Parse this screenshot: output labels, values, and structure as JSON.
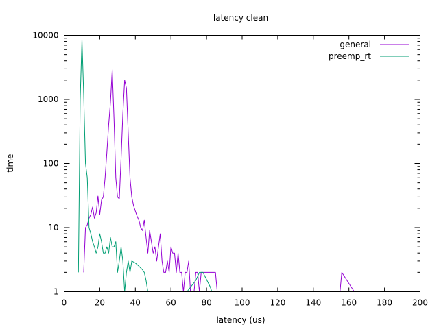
{
  "chart_data": {
    "type": "line",
    "title": "latency clean",
    "xlabel": "latency (us)",
    "ylabel": "time",
    "xlim": [
      0,
      200
    ],
    "ylim": [
      1,
      10000
    ],
    "yscale": "log",
    "grid": false,
    "legend_position": "top-right",
    "x_ticks": [
      "0",
      "20",
      "40",
      "60",
      "80",
      "100",
      "120",
      "140",
      "160",
      "180",
      "200"
    ],
    "y_ticks": [
      "1",
      "10",
      "100",
      "1000",
      "10000"
    ],
    "series": [
      {
        "name": "general",
        "color": "#9400d3",
        "points": [
          [
            11,
            2
          ],
          [
            12,
            10
          ],
          [
            13,
            11
          ],
          [
            14,
            14
          ],
          [
            15,
            16
          ],
          [
            16,
            21
          ],
          [
            17,
            14
          ],
          [
            18,
            17
          ],
          [
            19,
            31
          ],
          [
            20,
            16
          ],
          [
            21,
            27
          ],
          [
            22,
            30
          ],
          [
            23,
            60
          ],
          [
            24,
            150
          ],
          [
            25,
            400
          ],
          [
            26,
            900
          ],
          [
            27,
            2900
          ],
          [
            28,
            500
          ],
          [
            29,
            60
          ],
          [
            30,
            30
          ],
          [
            31,
            28
          ],
          [
            32,
            120
          ],
          [
            33,
            600
          ],
          [
            34,
            2000
          ],
          [
            35,
            1500
          ],
          [
            36,
            300
          ],
          [
            37,
            60
          ],
          [
            38,
            30
          ],
          [
            39,
            22
          ],
          [
            40,
            18
          ],
          [
            41,
            15
          ],
          [
            42,
            13
          ],
          [
            43,
            10
          ],
          [
            44,
            9
          ],
          [
            45,
            13
          ],
          [
            46,
            7
          ],
          [
            47,
            4
          ],
          [
            48,
            9
          ],
          [
            49,
            6
          ],
          [
            50,
            4
          ],
          [
            51,
            5
          ],
          [
            52,
            3
          ],
          [
            53,
            5
          ],
          [
            54,
            8
          ],
          [
            55,
            3
          ],
          [
            56,
            2
          ],
          [
            57,
            2
          ],
          [
            58,
            3
          ],
          [
            59,
            2
          ],
          [
            60,
            5
          ],
          [
            61,
            4
          ],
          [
            62,
            4
          ],
          [
            63,
            2
          ],
          [
            64,
            4
          ],
          [
            65,
            2
          ],
          [
            66,
            2
          ],
          [
            67,
            1
          ],
          [
            68,
            2
          ],
          [
            69,
            2
          ],
          [
            70,
            3
          ],
          [
            71,
            1
          ],
          [
            72,
            1
          ],
          [
            73,
            1
          ],
          [
            74,
            2
          ],
          [
            75,
            2
          ],
          [
            76,
            1
          ],
          [
            77,
            2
          ],
          [
            78,
            2
          ],
          [
            80,
            2
          ],
          [
            85,
            2
          ],
          [
            86,
            1
          ],
          [
            155,
            1
          ],
          [
            156,
            2
          ],
          [
            163,
            1
          ]
        ]
      },
      {
        "name": "preemp_rt",
        "color": "#009e73",
        "points": [
          [
            8,
            2
          ],
          [
            9,
            1000
          ],
          [
            10,
            8600
          ],
          [
            11,
            1200
          ],
          [
            12,
            100
          ],
          [
            13,
            60
          ],
          [
            14,
            10
          ],
          [
            15,
            8
          ],
          [
            16,
            6
          ],
          [
            17,
            5
          ],
          [
            18,
            4
          ],
          [
            19,
            5
          ],
          [
            20,
            8
          ],
          [
            21,
            6
          ],
          [
            22,
            4
          ],
          [
            23,
            4
          ],
          [
            24,
            5
          ],
          [
            25,
            4
          ],
          [
            26,
            7
          ],
          [
            27,
            5
          ],
          [
            28,
            5
          ],
          [
            29,
            6
          ],
          [
            30,
            2
          ],
          [
            31,
            3
          ],
          [
            32,
            5
          ],
          [
            33,
            3
          ],
          [
            34,
            1
          ],
          [
            35,
            2
          ],
          [
            36,
            3
          ],
          [
            37,
            2
          ],
          [
            38,
            3
          ],
          [
            40,
            2.8
          ],
          [
            42,
            2.5
          ],
          [
            44,
            2.2
          ],
          [
            45,
            2
          ],
          [
            46,
            1.5
          ],
          [
            47,
            1
          ],
          [
            69,
            1
          ],
          [
            74,
            1.5
          ],
          [
            76,
            2
          ],
          [
            78,
            2
          ],
          [
            82,
            1.2
          ],
          [
            83,
            1
          ]
        ]
      }
    ]
  }
}
